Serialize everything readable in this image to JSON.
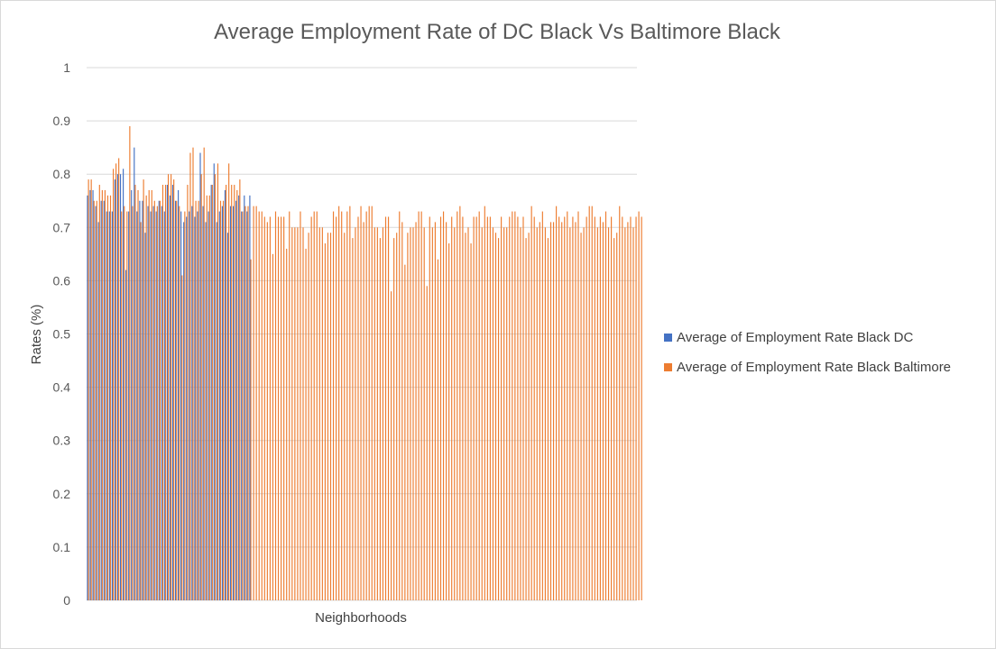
{
  "chart_data": {
    "type": "bar",
    "title": "Average Employment Rate of DC Black Vs Baltimore Black",
    "xlabel": "Neighborhoods",
    "ylabel": "Rates (%)",
    "ylim": [
      0,
      1
    ],
    "yticks": [
      "0",
      "0.1",
      "0.2",
      "0.3",
      "0.4",
      "0.5",
      "0.6",
      "0.7",
      "0.8",
      "0.9",
      "1"
    ],
    "grid": true,
    "legend_position": "right",
    "category_count": 200,
    "series": [
      {
        "name": "Average of Employment Rate Black DC",
        "color": "#4472c4",
        "values": [
          0.76,
          0.77,
          0.77,
          0.74,
          0.71,
          0.75,
          0.75,
          0.73,
          0.73,
          0.73,
          0.79,
          0.8,
          0.8,
          0.81,
          0.62,
          0.73,
          0.77,
          0.85,
          0.73,
          0.75,
          0.75,
          0.69,
          0.74,
          0.73,
          0.74,
          0.73,
          0.75,
          0.74,
          0.73,
          0.78,
          0.76,
          0.78,
          0.75,
          0.77,
          0.73,
          0.71,
          0.72,
          0.73,
          0.74,
          0.72,
          0.73,
          0.84,
          0.74,
          0.71,
          0.73,
          0.78,
          0.82,
          0.71,
          0.73,
          0.74,
          0.77,
          0.69,
          0.74,
          0.74,
          0.75,
          0.76,
          0.73,
          0.76,
          0.73,
          0.76
        ]
      },
      {
        "name": "Average of Employment Rate Black Baltimore",
        "color": "#ed7d31",
        "values": [
          0.79,
          0.79,
          0.75,
          0.75,
          0.78,
          0.77,
          0.77,
          0.76,
          0.76,
          0.81,
          0.82,
          0.83,
          0.73,
          0.74,
          0.73,
          0.89,
          0.74,
          0.78,
          0.77,
          0.71,
          0.79,
          0.76,
          0.77,
          0.77,
          0.75,
          0.74,
          0.75,
          0.78,
          0.78,
          0.8,
          0.8,
          0.79,
          0.75,
          0.74,
          0.61,
          0.73,
          0.78,
          0.84,
          0.85,
          0.75,
          0.75,
          0.8,
          0.85,
          0.76,
          0.76,
          0.78,
          0.8,
          0.82,
          0.75,
          0.75,
          0.78,
          0.82,
          0.78,
          0.78,
          0.77,
          0.79,
          0.73,
          0.74,
          0.74,
          0.64,
          0.74,
          0.74,
          0.73,
          0.73,
          0.72,
          0.71,
          0.72,
          0.65,
          0.73,
          0.72,
          0.72,
          0.72,
          0.66,
          0.73,
          0.7,
          0.7,
          0.7,
          0.73,
          0.7,
          0.66,
          0.69,
          0.72,
          0.73,
          0.73,
          0.7,
          0.7,
          0.67,
          0.69,
          0.69,
          0.73,
          0.72,
          0.74,
          0.73,
          0.69,
          0.73,
          0.74,
          0.68,
          0.7,
          0.72,
          0.74,
          0.71,
          0.73,
          0.74,
          0.74,
          0.7,
          0.7,
          0.68,
          0.7,
          0.72,
          0.72,
          0.58,
          0.68,
          0.69,
          0.73,
          0.71,
          0.63,
          0.69,
          0.7,
          0.7,
          0.71,
          0.73,
          0.73,
          0.7,
          0.59,
          0.72,
          0.7,
          0.71,
          0.64,
          0.72,
          0.73,
          0.71,
          0.67,
          0.72,
          0.7,
          0.73,
          0.74,
          0.72,
          0.69,
          0.7,
          0.67,
          0.72,
          0.72,
          0.73,
          0.7,
          0.74,
          0.72,
          0.72,
          0.7,
          0.69,
          0.68,
          0.72,
          0.7,
          0.7,
          0.72,
          0.73,
          0.73,
          0.72,
          0.7,
          0.72,
          0.68,
          0.69,
          0.74,
          0.72,
          0.7,
          0.71,
          0.73,
          0.7,
          0.68,
          0.71,
          0.71,
          0.74,
          0.72,
          0.71,
          0.72,
          0.73,
          0.7,
          0.72,
          0.71,
          0.73,
          0.69,
          0.7,
          0.72,
          0.74,
          0.74,
          0.72,
          0.7,
          0.72,
          0.71,
          0.73,
          0.7,
          0.72,
          0.68,
          0.69,
          0.74,
          0.72,
          0.7,
          0.71,
          0.72,
          0.7,
          0.72,
          0.73,
          0.72
        ]
      }
    ]
  }
}
